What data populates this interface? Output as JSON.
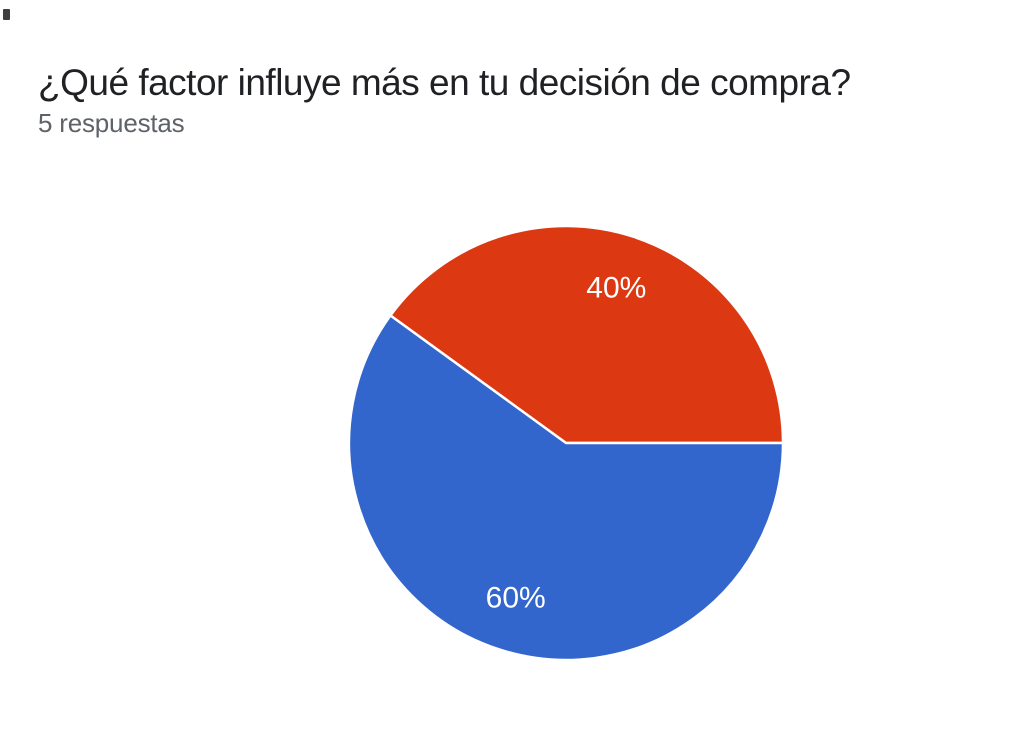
{
  "header": {
    "title": "¿Qué factor influye más en tu decisión de compra?",
    "subtitle": "5 respuestas"
  },
  "chart_data": {
    "type": "pie",
    "title": "¿Qué factor influye más en tu decisión de compra?",
    "subtitle": "5 respuestas",
    "values": [
      40,
      60
    ],
    "labels": [
      "40%",
      "60%"
    ],
    "colors": [
      "#DC3912",
      "#3366CC"
    ],
    "label_color": "#ffffff",
    "layout": {
      "start_angle_deg": 0,
      "counterclockwise": true,
      "label_radius_ratio": 0.75,
      "separator_color": "#ffffff",
      "separator_width": 2.5,
      "legend": "none"
    }
  }
}
